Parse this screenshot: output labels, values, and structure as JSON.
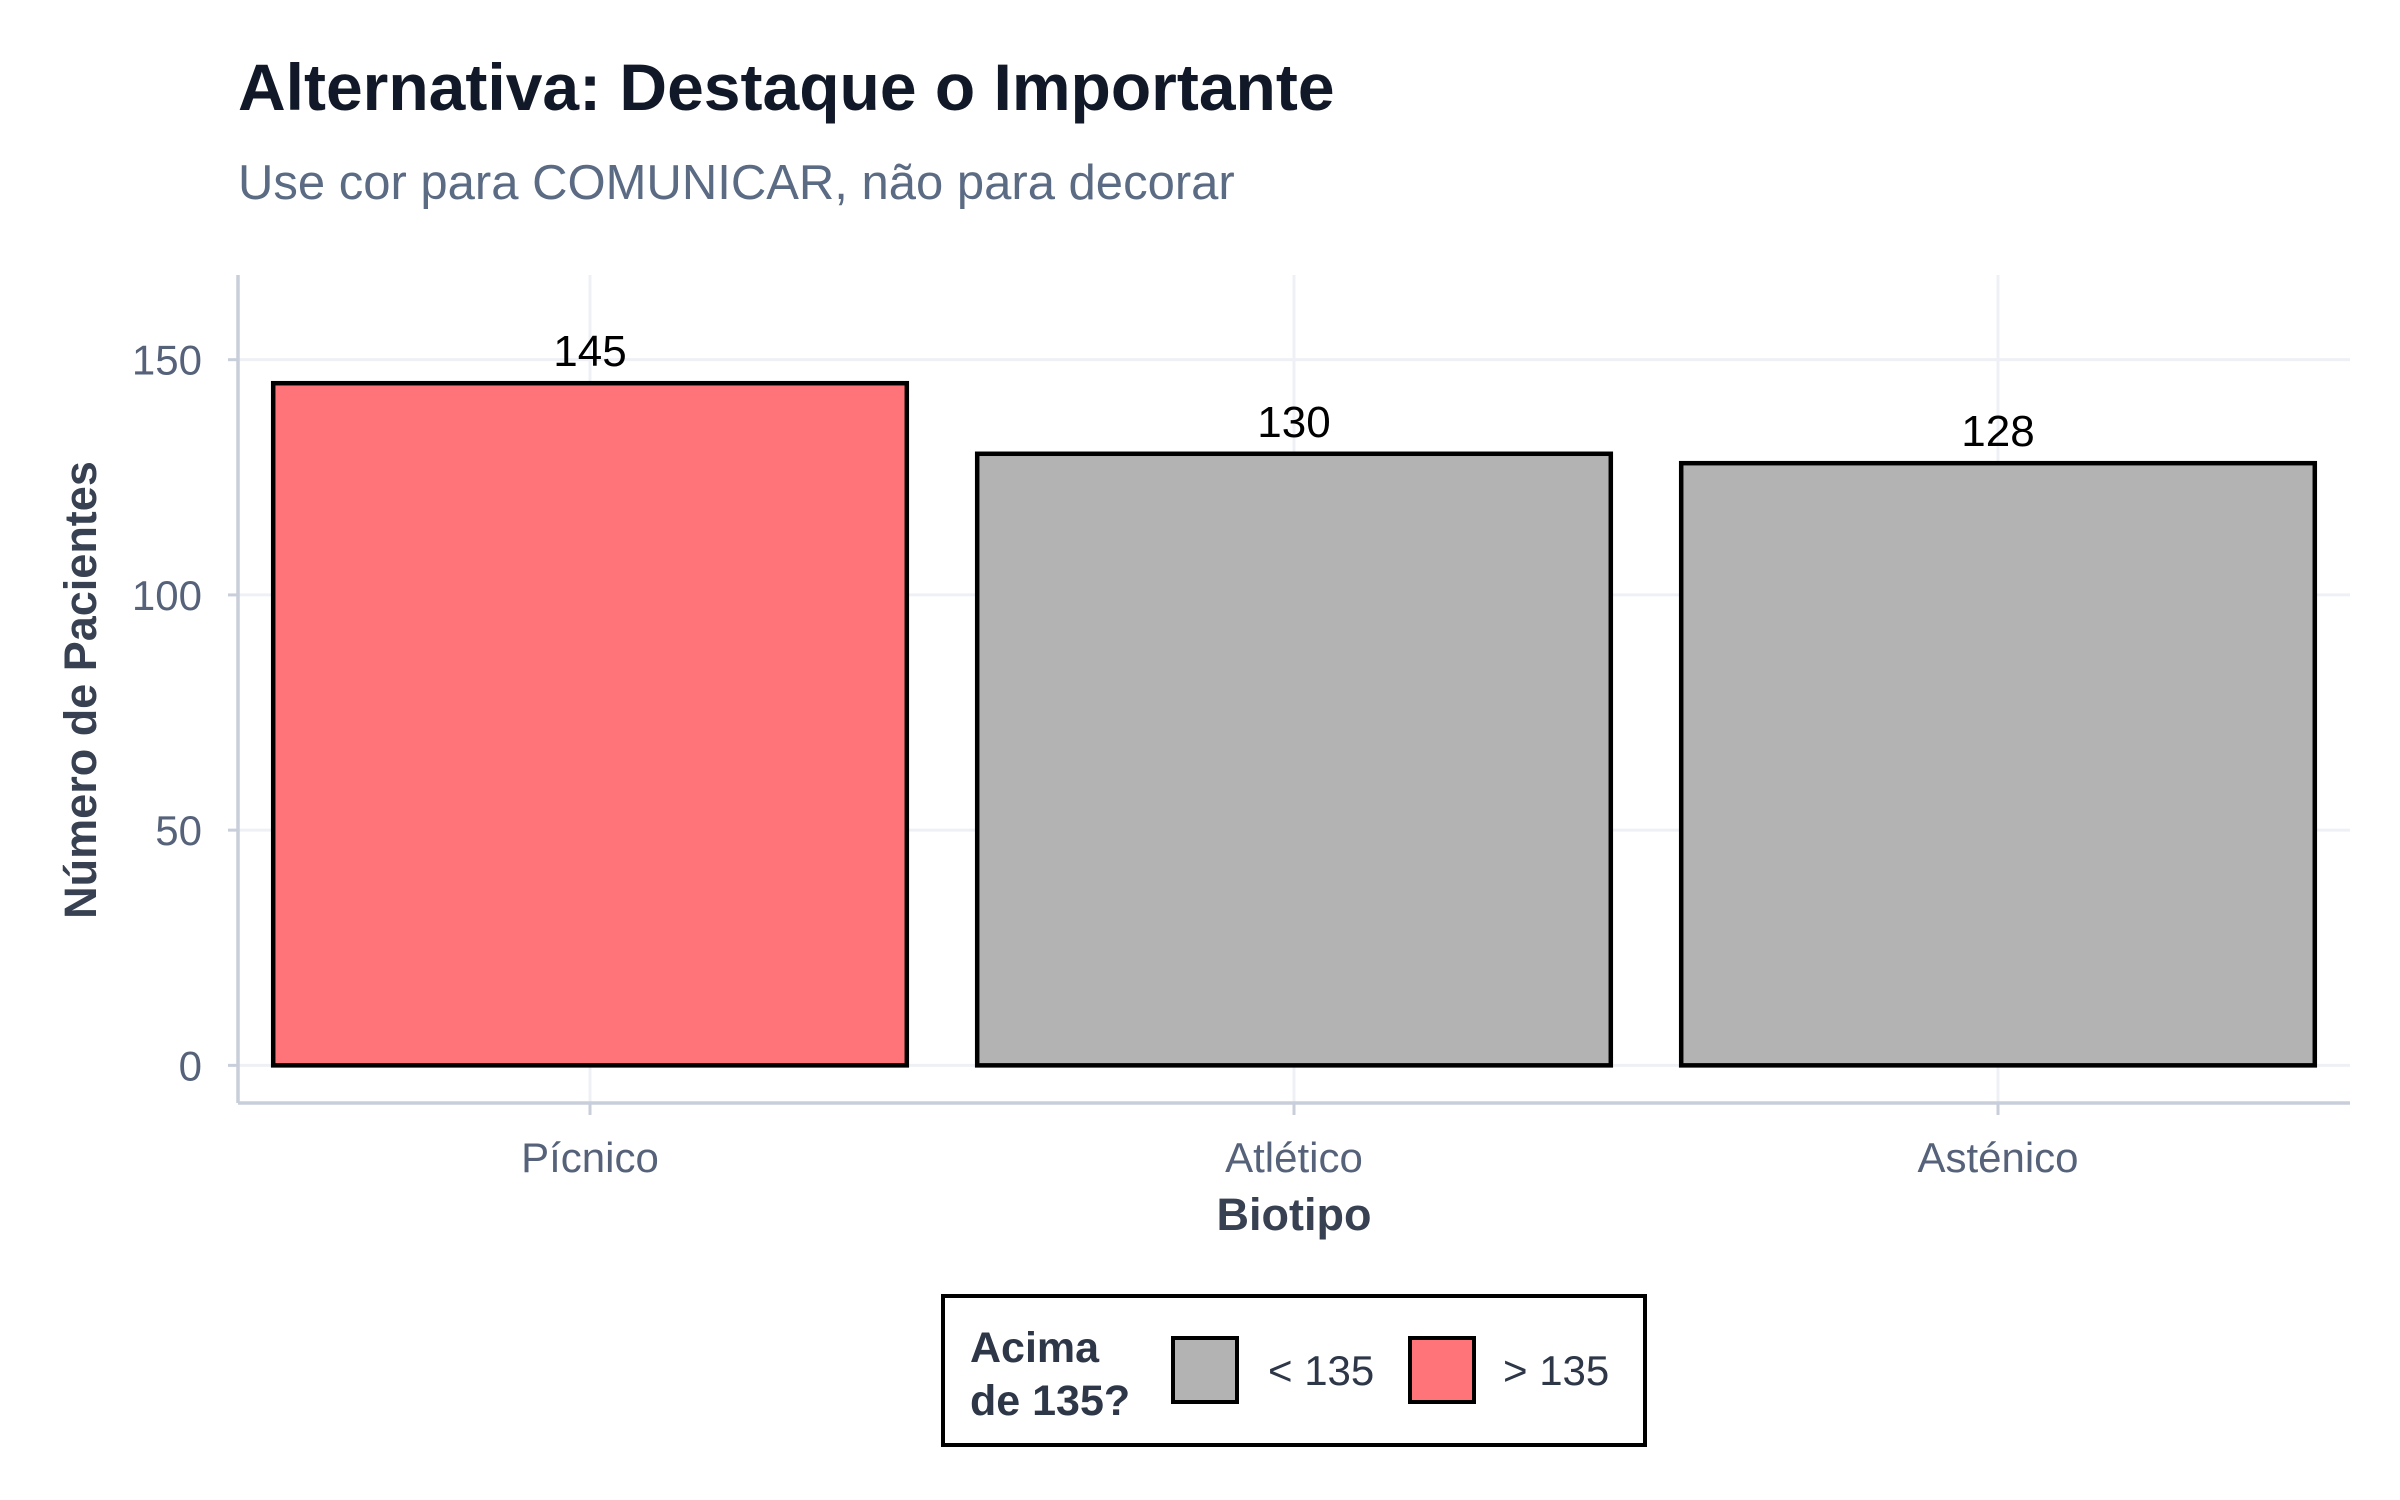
{
  "chart_data": {
    "type": "bar",
    "title": "Alternativa: Destaque o Importante",
    "subtitle": "Use cor para COMUNICAR, não para decorar",
    "xlabel": "Biotipo",
    "ylabel": "Número de Pacientes",
    "categories": [
      "Pícnico",
      "Atlético",
      "Asténico"
    ],
    "values": [
      145,
      130,
      128
    ],
    "data_labels": [
      "145",
      "130",
      "128"
    ],
    "groups": [
      "> 135",
      "< 135",
      "< 135"
    ],
    "ylim": [
      -8,
      168
    ],
    "yticks": [
      0,
      50,
      100,
      150
    ],
    "ytick_labels": [
      "0",
      "50",
      "100",
      "150"
    ],
    "grid": true,
    "legend": {
      "title": "Acima de 135?",
      "title_lines": [
        "Acima",
        "de 135?"
      ],
      "position": "bottom",
      "entries": [
        {
          "label": "< 135",
          "color": "#b3b3b3"
        },
        {
          "label": "> 135",
          "color": "#ff7479"
        }
      ]
    },
    "colors": {
      "highlight": "#ff7479",
      "base": "#b3b3b3",
      "bar_outline": "#000000",
      "grid": "#eef0f5",
      "axis": "#c8ceda"
    }
  }
}
